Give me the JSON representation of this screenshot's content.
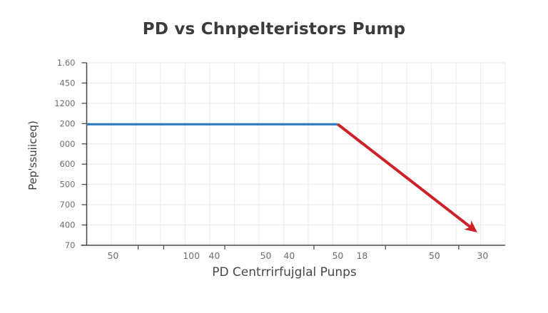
{
  "page": {
    "background": "#ffffff"
  },
  "chart_data": {
    "type": "line",
    "title": "PD vs Chnpelteristors Pump",
    "xlabel": "PD Centrrirfujglal Punps",
    "ylabel": "Pep'ssuiiceq)",
    "grid": true,
    "legend": "none",
    "colors": {
      "axis": "#4d4d4d",
      "grid": "#ececec",
      "tick_label": "#6e6e6e",
      "title": "#3b3b3b",
      "blue_series": "#2e7bbf",
      "red_series": "#cd2127"
    },
    "y_axis": {
      "tick_labels": [
        "1.60",
        "450",
        "1200",
        "200",
        "000",
        "600",
        "500",
        "700",
        "400",
        "70"
      ]
    },
    "x_axis": {
      "tick_labels": [
        {
          "label": "50",
          "xf": 0.063
        },
        {
          "label": "100",
          "xf": 0.25
        },
        {
          "label": "40",
          "xf": 0.305
        },
        {
          "label": "50",
          "xf": 0.428
        },
        {
          "label": "40",
          "xf": 0.484
        },
        {
          "label": "50",
          "xf": 0.6
        },
        {
          "label": "18",
          "xf": 0.658
        },
        {
          "label": "50",
          "xf": 0.831
        },
        {
          "label": "30",
          "xf": 0.946
        }
      ],
      "tick_marks_xf": [
        0.123,
        0.184,
        0.33,
        0.543,
        0.714,
        0.889
      ]
    },
    "series": [
      {
        "name": "constant-segment",
        "color": "#2e7bbf",
        "stroke_width": 3.2,
        "arrow": false,
        "points_f": [
          [
            0.0,
            0.337
          ],
          [
            0.6,
            0.337
          ]
        ]
      },
      {
        "name": "declining-arrow-segment",
        "color": "#cd2127",
        "stroke_width": 4,
        "arrow": true,
        "points_f": [
          [
            0.6,
            0.337
          ],
          [
            0.928,
            0.92
          ]
        ]
      }
    ],
    "layout_hints": {
      "grid_columns": 17,
      "grid_rows": 9,
      "legend_position": "none"
    }
  }
}
